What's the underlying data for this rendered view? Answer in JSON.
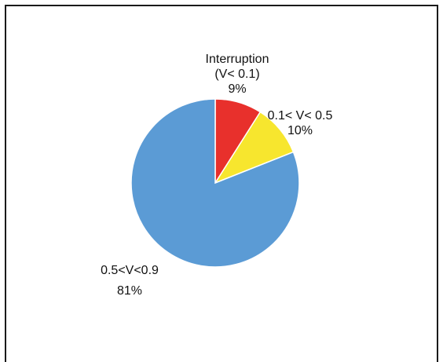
{
  "chart_data": {
    "type": "pie",
    "title": "",
    "slices": [
      {
        "label_lines": [
          "Interruption",
          "(V< 0.1)"
        ],
        "percent_label": "9%",
        "value": 9,
        "color": "#e8302c"
      },
      {
        "label_lines": [
          "0.1< V< 0.5"
        ],
        "percent_label": "10%",
        "value": 10,
        "color": "#f7e62e"
      },
      {
        "label_lines": [
          "0.5<V<0.9"
        ],
        "percent_label": "81%",
        "value": 81,
        "color": "#5b9bd5"
      }
    ],
    "start_angle_deg": 0,
    "direction": "clockwise",
    "slice_border_color": "#ffffff",
    "legend": "none"
  }
}
